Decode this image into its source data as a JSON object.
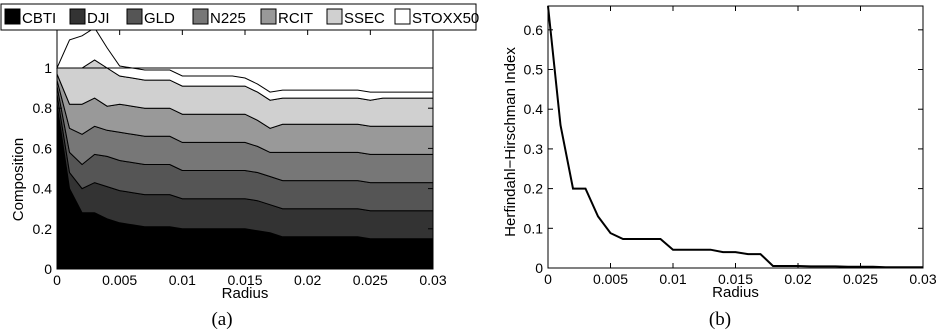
{
  "chart_data": [
    {
      "type": "area",
      "caption": "(a)",
      "xlabel": "Radius",
      "ylabel": "Composition",
      "xlim": [
        0,
        0.03
      ],
      "ylim": [
        0,
        1
      ],
      "xticks": [
        "0",
        "0.005",
        "0.01",
        "0.015",
        "0.02",
        "0.025",
        "0.03"
      ],
      "yticks": [
        "0",
        "0.2",
        "0.4",
        "0.6",
        "0.8",
        "1"
      ],
      "legend_position": "top",
      "x": [
        0,
        0.001,
        0.002,
        0.003,
        0.004,
        0.005,
        0.006,
        0.007,
        0.008,
        0.009,
        0.01,
        0.011,
        0.012,
        0.013,
        0.014,
        0.015,
        0.016,
        0.017,
        0.018,
        0.019,
        0.02,
        0.021,
        0.022,
        0.023,
        0.024,
        0.025,
        0.026,
        0.027,
        0.028,
        0.029,
        0.03
      ],
      "series": [
        {
          "name": "CBTI",
          "color": "#000000",
          "values": [
            0.82,
            0.4,
            0.28,
            0.28,
            0.25,
            0.23,
            0.22,
            0.21,
            0.21,
            0.21,
            0.2,
            0.2,
            0.2,
            0.2,
            0.2,
            0.2,
            0.19,
            0.18,
            0.16,
            0.16,
            0.16,
            0.16,
            0.16,
            0.16,
            0.16,
            0.15,
            0.15,
            0.15,
            0.15,
            0.15,
            0.15
          ]
        },
        {
          "name": "DJI",
          "color": "#333333",
          "values": [
            0.05,
            0.08,
            0.12,
            0.15,
            0.16,
            0.16,
            0.16,
            0.16,
            0.16,
            0.16,
            0.15,
            0.15,
            0.15,
            0.15,
            0.15,
            0.15,
            0.15,
            0.14,
            0.14,
            0.14,
            0.14,
            0.14,
            0.14,
            0.14,
            0.14,
            0.14,
            0.14,
            0.14,
            0.14,
            0.14,
            0.14
          ]
        },
        {
          "name": "GLD",
          "color": "#555555",
          "values": [
            0.04,
            0.1,
            0.12,
            0.14,
            0.15,
            0.15,
            0.15,
            0.15,
            0.15,
            0.15,
            0.14,
            0.14,
            0.14,
            0.14,
            0.14,
            0.14,
            0.14,
            0.14,
            0.14,
            0.14,
            0.14,
            0.14,
            0.14,
            0.14,
            0.14,
            0.14,
            0.14,
            0.14,
            0.14,
            0.14,
            0.14
          ]
        },
        {
          "name": "N225",
          "color": "#777777",
          "values": [
            0.03,
            0.12,
            0.15,
            0.14,
            0.13,
            0.14,
            0.14,
            0.14,
            0.14,
            0.14,
            0.14,
            0.14,
            0.14,
            0.14,
            0.14,
            0.14,
            0.13,
            0.12,
            0.14,
            0.14,
            0.14,
            0.14,
            0.14,
            0.14,
            0.14,
            0.14,
            0.14,
            0.14,
            0.14,
            0.14,
            0.14
          ]
        },
        {
          "name": "RCIT",
          "color": "#999999",
          "values": [
            0.03,
            0.12,
            0.15,
            0.14,
            0.12,
            0.14,
            0.14,
            0.14,
            0.14,
            0.14,
            0.14,
            0.14,
            0.14,
            0.14,
            0.14,
            0.14,
            0.13,
            0.12,
            0.14,
            0.14,
            0.14,
            0.14,
            0.14,
            0.14,
            0.14,
            0.14,
            0.14,
            0.14,
            0.14,
            0.14,
            0.14
          ]
        },
        {
          "name": "SSEC",
          "color": "#d0d0d0",
          "values": [
            0.03,
            0.18,
            0.18,
            0.19,
            0.19,
            0.14,
            0.14,
            0.14,
            0.14,
            0.14,
            0.14,
            0.14,
            0.14,
            0.14,
            0.14,
            0.14,
            0.14,
            0.14,
            0.13,
            0.13,
            0.13,
            0.13,
            0.13,
            0.13,
            0.13,
            0.13,
            0.14,
            0.14,
            0.14,
            0.14,
            0.14
          ]
        },
        {
          "name": "STOXX50",
          "color": "#ffffff",
          "values": [
            0.0,
            0.14,
            0.16,
            0.16,
            0.1,
            0.05,
            0.05,
            0.05,
            0.05,
            0.05,
            0.05,
            0.05,
            0.05,
            0.05,
            0.05,
            0.04,
            0.04,
            0.04,
            0.04,
            0.04,
            0.04,
            0.04,
            0.04,
            0.04,
            0.04,
            0.04,
            0.03,
            0.03,
            0.03,
            0.03,
            0.03
          ]
        }
      ]
    },
    {
      "type": "line",
      "caption": "(b)",
      "xlabel": "Radius",
      "ylabel": "Herfindahl−Hirschman Index",
      "xlim": [
        0,
        0.03
      ],
      "ylim": [
        0,
        0.66
      ],
      "xticks": [
        "0",
        "0.005",
        "0.01",
        "0.015",
        "0.02",
        "0.025",
        "0.03"
      ],
      "yticks": [
        "0",
        "0.1",
        "0.2",
        "0.3",
        "0.4",
        "0.5",
        "0.6"
      ],
      "x": [
        0,
        0.001,
        0.002,
        0.003,
        0.004,
        0.005,
        0.006,
        0.007,
        0.008,
        0.009,
        0.01,
        0.011,
        0.012,
        0.013,
        0.014,
        0.015,
        0.016,
        0.017,
        0.018,
        0.019,
        0.02,
        0.021,
        0.022,
        0.023,
        0.024,
        0.025,
        0.026,
        0.027,
        0.028,
        0.029,
        0.03
      ],
      "values": [
        0.66,
        0.36,
        0.2,
        0.2,
        0.13,
        0.088,
        0.073,
        0.073,
        0.073,
        0.073,
        0.046,
        0.046,
        0.046,
        0.046,
        0.04,
        0.04,
        0.035,
        0.035,
        0.005,
        0.005,
        0.005,
        0.004,
        0.004,
        0.004,
        0.003,
        0.003,
        0.003,
        0.002,
        0.002,
        0.002,
        0.002
      ]
    }
  ]
}
